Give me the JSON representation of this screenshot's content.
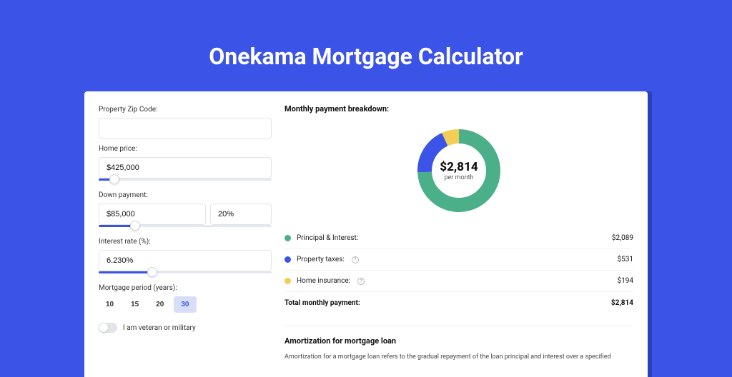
{
  "page": {
    "title": "Onekama Mortgage Calculator"
  },
  "colors": {
    "page_bg": "#3b53e6",
    "card_bg": "#ffffff",
    "accent": "#3b53e6",
    "slider_track": "#e6e8ef",
    "border": "#e1e4e8",
    "principal": "#4bb08a",
    "taxes": "#3b53e6",
    "insurance": "#f3cd55",
    "period_active_bg": "#d8defa"
  },
  "form": {
    "zip": {
      "label": "Property Zip Code:",
      "value": ""
    },
    "home_price": {
      "label": "Home price:",
      "value": "$425,000",
      "slider_pct": 9
    },
    "down_payment": {
      "label": "Down payment:",
      "amount": "$85,000",
      "percent": "20%",
      "slider_pct": 21
    },
    "interest_rate": {
      "label": "Interest rate (%):",
      "value": "6.230%",
      "slider_pct": 31
    },
    "period": {
      "label": "Mortgage period (years):",
      "options": [
        "10",
        "15",
        "20",
        "30"
      ],
      "active": "30"
    },
    "veteran": {
      "label": "I am veteran or military",
      "checked": false
    }
  },
  "breakdown": {
    "title": "Monthly payment breakdown:",
    "center_amount": "$2,814",
    "center_sub": "per month",
    "donut": {
      "size": 128,
      "stroke_width": 20,
      "slices": [
        {
          "key": "principal",
          "color": "#4bb08a",
          "fraction": 0.742
        },
        {
          "key": "taxes",
          "color": "#3b53e6",
          "fraction": 0.189
        },
        {
          "key": "insurance",
          "color": "#f3cd55",
          "fraction": 0.069
        }
      ]
    },
    "items": [
      {
        "label": "Principal & Interest:",
        "value": "$2,089",
        "color": "#4bb08a",
        "info": false
      },
      {
        "label": "Property taxes:",
        "value": "$531",
        "color": "#3b53e6",
        "info": true
      },
      {
        "label": "Home insurance:",
        "value": "$194",
        "color": "#f3cd55",
        "info": true
      }
    ],
    "total": {
      "label": "Total monthly payment:",
      "value": "$2,814"
    }
  },
  "amortization": {
    "title": "Amortization for mortgage loan",
    "text": "Amortization for a mortgage loan refers to the gradual repayment of the loan principal and interest over a specified"
  }
}
